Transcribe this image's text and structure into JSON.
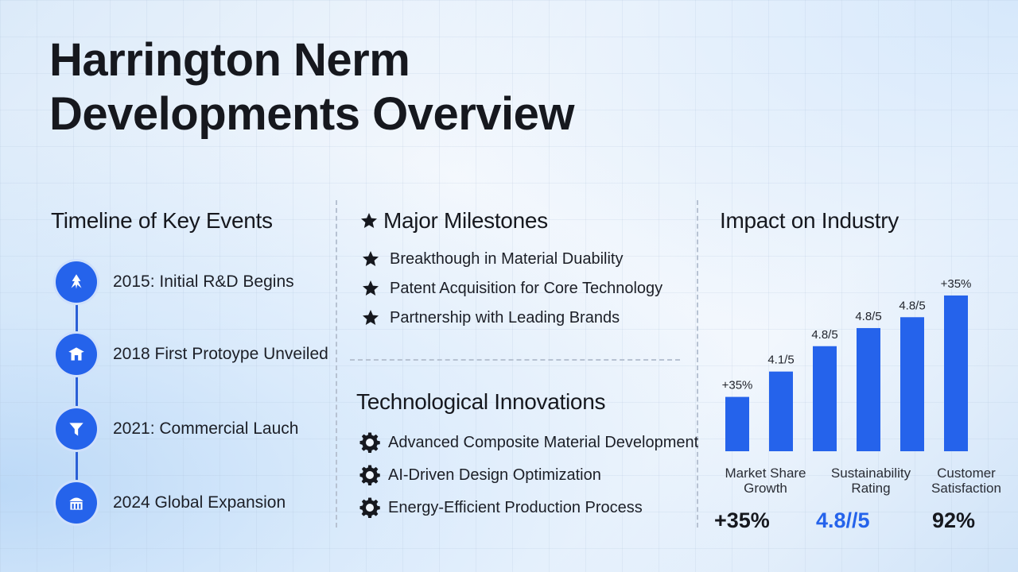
{
  "title": {
    "line1": "Harrington Nerm",
    "line2": "Developments Overview"
  },
  "timeline": {
    "heading": "Timeline of Key Events",
    "items": [
      {
        "label": "2015: Initial R&D Begins",
        "icon": "research-icon"
      },
      {
        "label": "2018 First Protoype Unveiled",
        "icon": "prototype-icon"
      },
      {
        "label": "2021: Commercial Lauch",
        "icon": "launch-icon"
      },
      {
        "label": "2024 Global Expansion",
        "icon": "building-icon"
      }
    ]
  },
  "milestones": {
    "heading": "Major Milestones",
    "items": [
      "Breakthough in Material Duability",
      "Patent Acquisition for Core Technology",
      "Partnership with Leading Brands"
    ]
  },
  "innovations": {
    "heading": "Technological Innovations",
    "items": [
      "Advanced Composite Material Development",
      "AI-Driven Design Optimization",
      "Energy-Efficient Production Process"
    ]
  },
  "impact": {
    "heading": "Impact on Industry",
    "categories": [
      {
        "label": "Market Share Growth"
      },
      {
        "label": "Sustainability Rating"
      },
      {
        "label": "Customer Satisfaction"
      }
    ],
    "summary": [
      {
        "value": "+35%",
        "color": "#16181e"
      },
      {
        "value": "4.8//5",
        "color": "#2563eb"
      },
      {
        "value": "92%",
        "color": "#16181e"
      }
    ]
  },
  "chart_data": {
    "type": "bar",
    "categories": [
      "",
      "",
      "",
      "",
      "",
      ""
    ],
    "values": [
      30,
      44,
      58,
      68,
      74,
      86
    ],
    "labels": [
      "+35%",
      "4.1/5",
      "4.8/5",
      "4.8/5",
      "4.8/5",
      "+35%"
    ],
    "ylim": [
      0,
      100
    ],
    "grid": false,
    "color": "#2563eb"
  }
}
